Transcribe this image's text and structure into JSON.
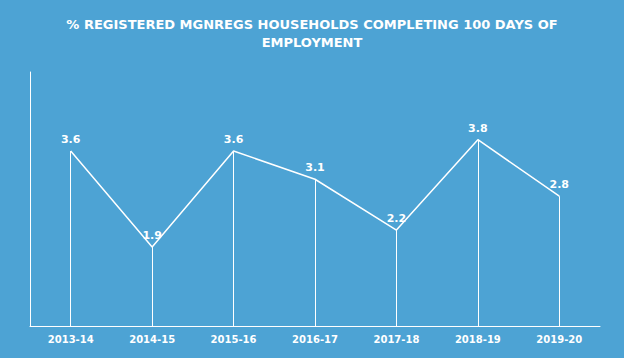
{
  "chart_data": {
    "type": "line",
    "title": "% REGISTERED MGNREGS HOUSEHOLDS COMPLETING 100 DAYS OF\nEMPLOYMENT",
    "categories": [
      "2013-14",
      "2014-15",
      "2015-16",
      "2016-17",
      "2017-18",
      "2018-19",
      "2019-20"
    ],
    "values": [
      3.6,
      1.9,
      3.6,
      3.1,
      2.2,
      3.8,
      2.8
    ],
    "color": "#ffffff",
    "ylim": [
      0.5,
      5.0
    ],
    "yticks": [],
    "grid": false,
    "data_labels": true,
    "tick_labels": "x"
  }
}
